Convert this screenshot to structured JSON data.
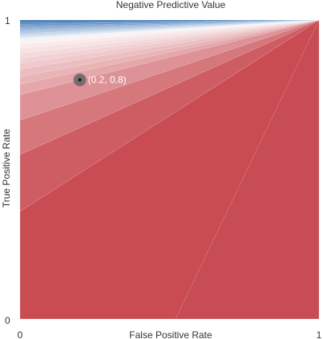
{
  "chart_data": {
    "type": "area",
    "title": "Negative Predictive Value",
    "xlabel": "False Positive Rate",
    "ylabel": "True Positive Rate",
    "xlim": [
      0,
      1
    ],
    "ylim": [
      0,
      1
    ],
    "x_ticks": [
      "0",
      "1"
    ],
    "y_ticks": [
      "0",
      "1"
    ],
    "grid": false,
    "colors": {
      "low": "#c94b52",
      "mid": "#ffffff",
      "high": "#3a72b5",
      "marker": "#222222",
      "marker_halo": "#666666"
    },
    "contour_boundaries_tpr_at_fpr0": [
      0,
      0.36,
      0.55,
      0.665,
      0.75,
      0.785,
      0.81,
      0.835,
      0.855,
      0.872,
      0.888,
      0.905,
      0.918,
      0.93,
      0.94,
      0.948,
      0.955,
      0.962,
      0.968,
      0.974,
      0.98,
      0.986,
      0.992,
      1.0
    ],
    "bottom_boundaries_fpr_at_tpr0": [
      0.52
    ],
    "point": {
      "x": 0.2,
      "y": 0.8,
      "label": "(0.2, 0.8)"
    }
  }
}
